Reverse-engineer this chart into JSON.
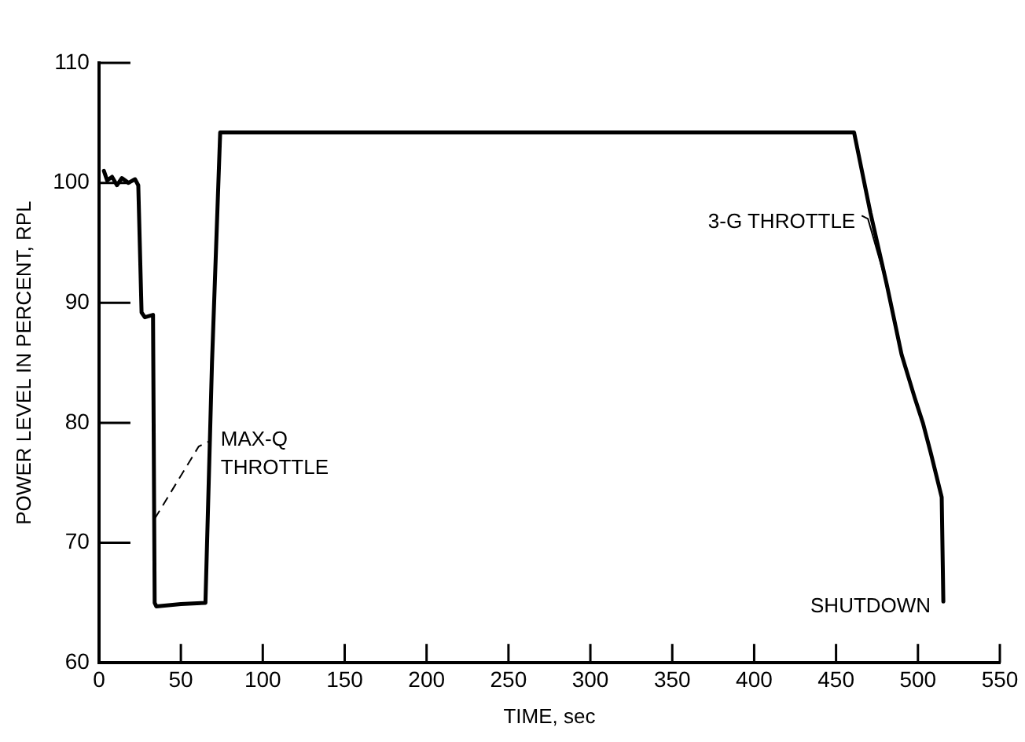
{
  "chart_data": {
    "type": "line",
    "xlabel": "TIME, sec",
    "ylabel": "POWER LEVEL IN PERCENT, RPL",
    "x": [
      3,
      5,
      8,
      11,
      14,
      18,
      22,
      24,
      26,
      28,
      33,
      34,
      35,
      50,
      65,
      69,
      74,
      200,
      350,
      461,
      471,
      481,
      490,
      498,
      503,
      508,
      514.5,
      515.5
    ],
    "series": [
      {
        "color": "#000000",
        "values": [
          101,
          100.2,
          100.5,
          99.8,
          100.4,
          100,
          100.3,
          99.8,
          89.2,
          88.8,
          89,
          65,
          64.7,
          64.9,
          65,
          85,
          104.2,
          104.2,
          104.2,
          104.2,
          97.5,
          91.5,
          85.7,
          82.1,
          80,
          77.4,
          73.8,
          65.1
        ]
      }
    ],
    "xlim": [
      0,
      550
    ],
    "xticks": [
      0,
      50,
      100,
      150,
      200,
      250,
      300,
      350,
      400,
      450,
      500,
      550
    ],
    "ylim": [
      60,
      110
    ],
    "yticks": [
      60,
      70,
      80,
      90,
      100,
      110
    ],
    "grid": false,
    "legend": false,
    "marker": "none",
    "line_style": "solid",
    "annotations": [
      {
        "text": "MAX-Q\nTHROTTLE",
        "x": 34,
        "y": 72
      },
      {
        "text": "3-G THROTTLE",
        "x": 481,
        "y": 91.5
      },
      {
        "text": "SHUTDOWN",
        "x": 515.5,
        "y": 65.1
      }
    ]
  }
}
